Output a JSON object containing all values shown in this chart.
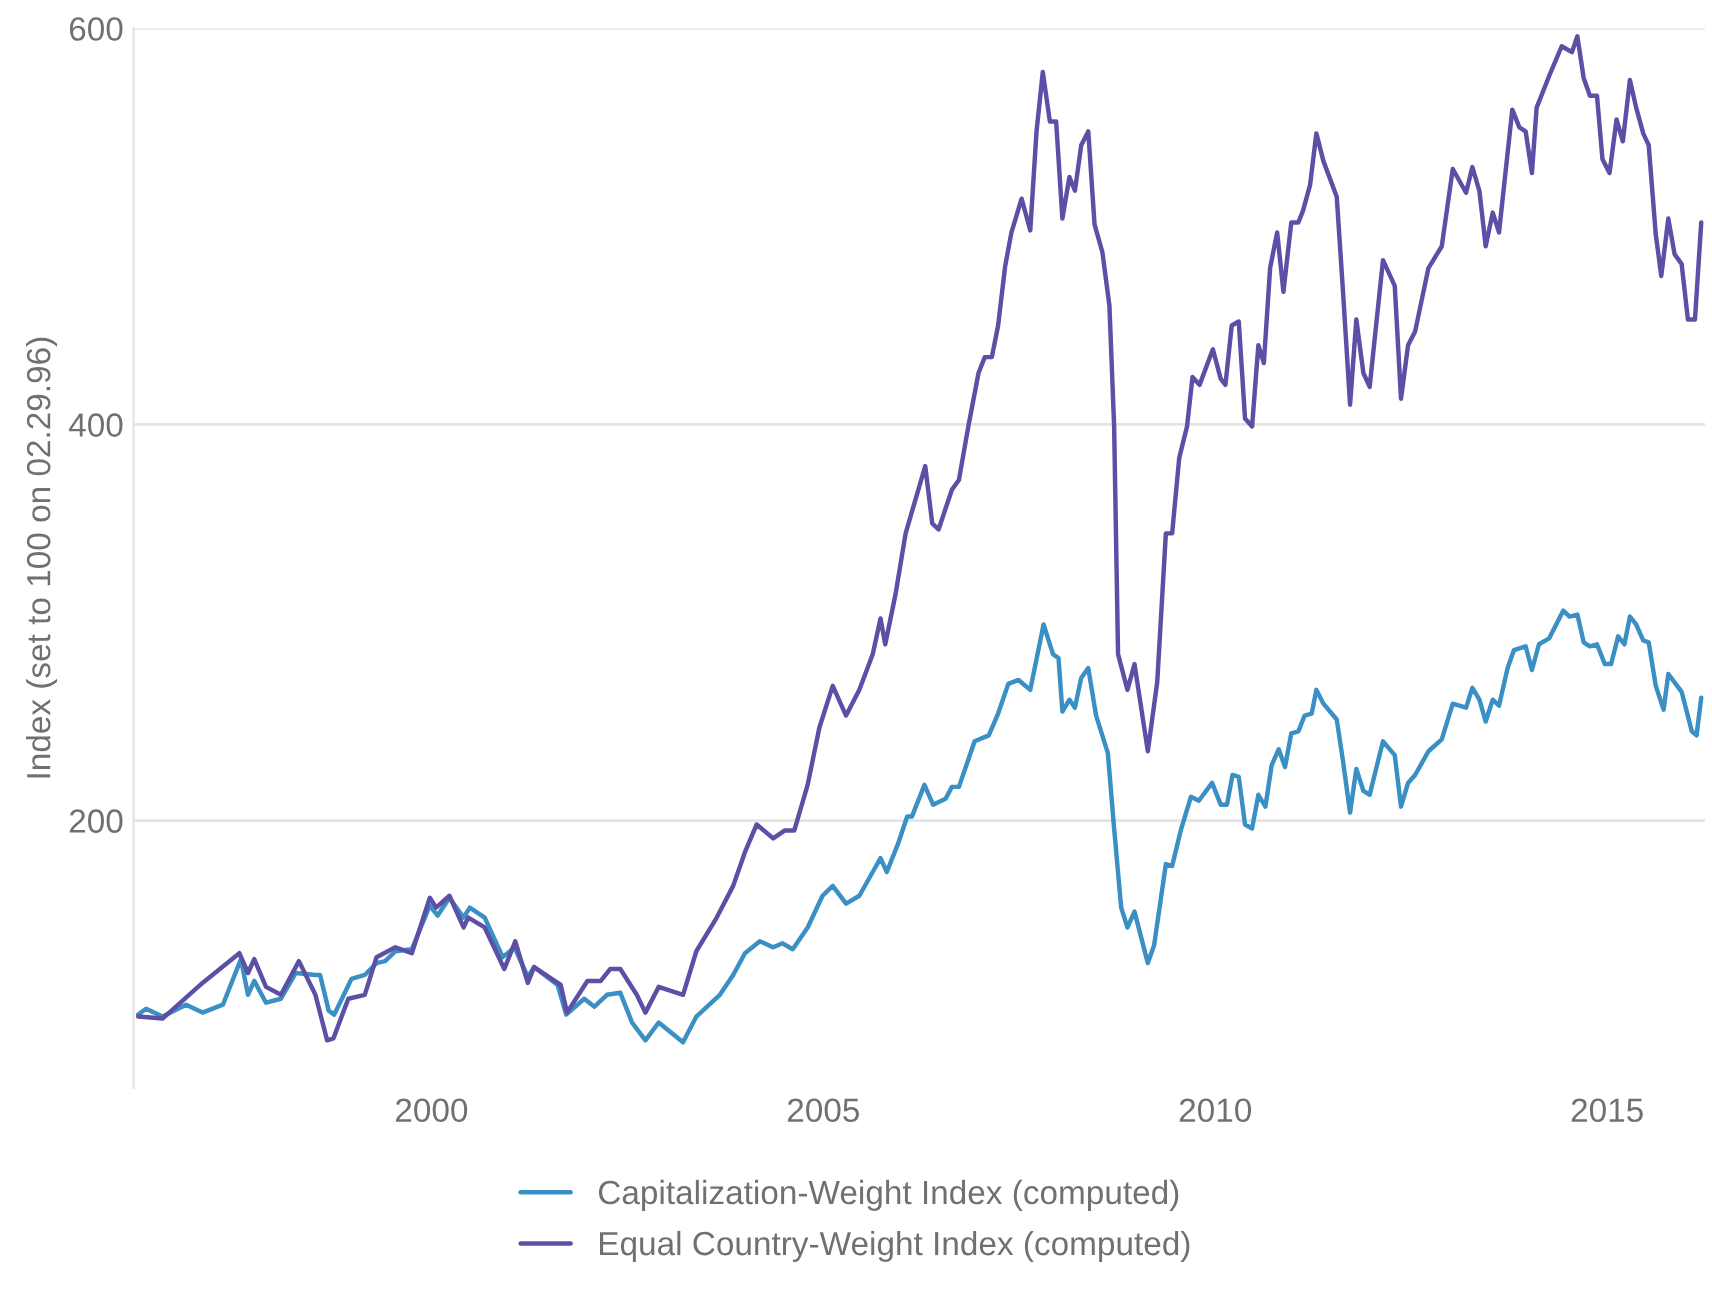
{
  "chart_data": {
    "type": "line",
    "ylabel": "Index (set to 100 on 02.29.96)",
    "xlim": [
      1996.2,
      2016.25
    ],
    "xticks": [
      2000,
      2005,
      2010,
      2015
    ],
    "ylim": [
      65,
      600
    ],
    "yticks": [
      200,
      400,
      600
    ],
    "grid": "y",
    "legend": "bottom",
    "marker": "none",
    "line_style": "solid",
    "series": [
      {
        "name": "Capitalization-Weight Index (computed)",
        "color": "#3a8fc4",
        "x": [
          1996.26,
          1996.36,
          1996.57,
          1996.87,
          1997.08,
          1997.34,
          1997.57,
          1997.66,
          1997.74,
          1997.89,
          1998.08,
          1998.27,
          1998.52,
          1998.58,
          1998.69,
          1998.76,
          1998.98,
          1999.15,
          1999.3,
          1999.41,
          1999.54,
          1999.75,
          1999.98,
          2000.08,
          2000.23,
          2000.41,
          2000.49,
          2000.68,
          2000.91,
          2001.06,
          2001.23,
          2001.31,
          2001.61,
          2001.72,
          2001.95,
          2002.08,
          2002.24,
          2002.41,
          2002.56,
          2002.73,
          2002.9,
          2003.21,
          2003.38,
          2003.68,
          2003.85,
          2004.0,
          2004.19,
          2004.36,
          2004.48,
          2004.61,
          2004.8,
          2004.99,
          2005.12,
          2005.29,
          2005.46,
          2005.63,
          2005.73,
          2005.81,
          2005.96,
          2006.07,
          2006.13,
          2006.29,
          2006.4,
          2006.56,
          2006.64,
          2006.73,
          2006.93,
          2007.11,
          2007.23,
          2007.36,
          2007.49,
          2007.64,
          2007.81,
          2007.93,
          2008.0,
          2008.05,
          2008.14,
          2008.21,
          2008.29,
          2008.38,
          2008.48,
          2008.63,
          2008.71,
          2008.8,
          2008.88,
          2008.97,
          2009.14,
          2009.22,
          2009.37,
          2009.45,
          2009.56,
          2009.69,
          2009.79,
          2009.96,
          2010.07,
          2010.15,
          2010.22,
          2010.3,
          2010.38,
          2010.47,
          2010.55,
          2010.64,
          2010.72,
          2010.81,
          2010.89,
          2010.97,
          2011.06,
          2011.14,
          2011.23,
          2011.29,
          2011.38,
          2011.55,
          2011.63,
          2011.72,
          2011.8,
          2011.89,
          2011.97,
          2012.14,
          2012.29,
          2012.37,
          2012.46,
          2012.55,
          2012.72,
          2012.89,
          2013.03,
          2013.2,
          2013.28,
          2013.37,
          2013.45,
          2013.54,
          2013.62,
          2013.73,
          2013.81,
          2013.96,
          2014.04,
          2014.13,
          2014.26,
          2014.44,
          2014.52,
          2014.62,
          2014.7,
          2014.78,
          2014.87,
          2014.97,
          2015.05,
          2015.14,
          2015.22,
          2015.29,
          2015.37,
          2015.46,
          2015.53,
          2015.62,
          2015.72,
          2015.78,
          2015.95,
          2016.08,
          2016.14,
          2016.2
        ],
        "values": [
          102,
          105,
          101,
          107,
          103,
          107,
          130,
          112,
          119,
          108,
          110,
          123,
          122,
          122,
          104,
          102,
          120,
          122,
          128,
          129,
          134,
          135,
          157,
          152,
          161,
          151,
          156,
          151,
          131,
          136,
          121,
          126,
          117,
          102,
          110,
          106,
          112,
          113,
          98,
          89,
          98,
          88,
          101,
          112,
          122,
          133,
          139,
          136,
          138,
          135,
          146,
          162,
          167,
          158,
          162,
          174,
          181,
          174,
          189,
          202,
          202,
          218,
          208,
          211,
          217,
          217,
          240,
          243,
          254,
          269,
          271,
          266,
          299,
          284,
          282,
          255,
          261,
          257,
          272,
          277,
          253,
          234,
          196,
          156,
          146,
          154,
          128,
          137,
          178,
          177,
          195,
          212,
          210,
          219,
          208,
          208,
          223,
          222,
          198,
          196,
          213,
          207,
          228,
          236,
          227,
          244,
          245,
          253,
          254,
          266,
          259,
          251,
          230,
          204,
          226,
          215,
          213,
          240,
          233,
          207,
          219,
          223,
          235,
          241,
          259,
          257,
          267,
          261,
          250,
          261,
          258,
          277,
          286,
          288,
          276,
          289,
          292,
          306,
          303,
          304,
          290,
          288,
          289,
          279,
          279,
          293,
          289,
          303,
          299,
          291,
          290,
          268,
          256,
          274,
          265,
          245,
          243,
          262
        ]
      },
      {
        "name": "Equal Country-Weight Index (computed)",
        "color": "#5b4fa6",
        "x": [
          1996.26,
          1996.57,
          1997.08,
          1997.55,
          1997.66,
          1997.74,
          1997.89,
          1998.08,
          1998.31,
          1998.52,
          1998.67,
          1998.75,
          1998.94,
          1999.15,
          1999.3,
          1999.54,
          1999.75,
          1999.98,
          2000.06,
          2000.23,
          2000.41,
          2000.47,
          2000.68,
          2000.93,
          2001.07,
          2001.23,
          2001.31,
          2001.65,
          2001.73,
          2001.99,
          2002.16,
          2002.28,
          2002.41,
          2002.62,
          2002.73,
          2002.9,
          2003.21,
          2003.38,
          2003.64,
          2003.85,
          2004.0,
          2004.15,
          2004.36,
          2004.51,
          2004.63,
          2004.8,
          2004.95,
          2005.12,
          2005.29,
          2005.46,
          2005.63,
          2005.73,
          2005.79,
          2005.92,
          2006.05,
          2006.3,
          2006.39,
          2006.47,
          2006.64,
          2006.73,
          2006.85,
          2006.98,
          2007.06,
          2007.15,
          2007.23,
          2007.32,
          2007.4,
          2007.53,
          2007.64,
          2007.72,
          2007.8,
          2007.89,
          2007.97,
          2008.05,
          2008.14,
          2008.21,
          2008.29,
          2008.38,
          2008.46,
          2008.56,
          2008.65,
          2008.71,
          2008.76,
          2008.88,
          2008.97,
          2009.14,
          2009.26,
          2009.37,
          2009.45,
          2009.54,
          2009.64,
          2009.71,
          2009.8,
          2009.97,
          2010.07,
          2010.13,
          2010.21,
          2010.3,
          2010.38,
          2010.47,
          2010.55,
          2010.62,
          2010.7,
          2010.79,
          2010.87,
          2010.97,
          2011.06,
          2011.12,
          2011.21,
          2011.29,
          2011.38,
          2011.55,
          2011.63,
          2011.72,
          2011.8,
          2011.89,
          2011.97,
          2012.14,
          2012.29,
          2012.37,
          2012.46,
          2012.55,
          2012.72,
          2012.89,
          2013.03,
          2013.2,
          2013.28,
          2013.37,
          2013.45,
          2013.54,
          2013.62,
          2013.79,
          2013.88,
          2013.96,
          2014.04,
          2014.1,
          2014.26,
          2014.42,
          2014.55,
          2014.62,
          2014.7,
          2014.78,
          2014.87,
          2014.94,
          2015.03,
          2015.12,
          2015.2,
          2015.29,
          2015.37,
          2015.46,
          2015.53,
          2015.62,
          2015.69,
          2015.78,
          2015.86,
          2015.95,
          2016.03,
          2016.12,
          2016.2
        ],
        "values": [
          101,
          100,
          118,
          133,
          123,
          130,
          116,
          112,
          129,
          112,
          89,
          90,
          110,
          112,
          131,
          136,
          133,
          161,
          156,
          162,
          146,
          151,
          146,
          125,
          139,
          118,
          126,
          117,
          103,
          119,
          119,
          125,
          125,
          112,
          103,
          116,
          112,
          134,
          151,
          167,
          184,
          198,
          191,
          195,
          195,
          218,
          247,
          268,
          253,
          266,
          284,
          302,
          289,
          314,
          345,
          379,
          350,
          347,
          367,
          372,
          399,
          426,
          434,
          434,
          450,
          480,
          497,
          514,
          498,
          548,
          578,
          553,
          553,
          504,
          525,
          518,
          541,
          548,
          501,
          487,
          460,
          399,
          284,
          266,
          279,
          235,
          270,
          345,
          345,
          383,
          399,
          424,
          420,
          438,
          423,
          420,
          450,
          452,
          403,
          399,
          440,
          431,
          479,
          497,
          467,
          502,
          502,
          508,
          521,
          547,
          533,
          515,
          467,
          410,
          453,
          426,
          419,
          483,
          470,
          413,
          440,
          447,
          479,
          490,
          529,
          517,
          530,
          518,
          490,
          507,
          497,
          559,
          550,
          548,
          527,
          560,
          576,
          591,
          588,
          596,
          575,
          566,
          566,
          534,
          527,
          554,
          543,
          574,
          560,
          547,
          541,
          496,
          475,
          504,
          486,
          481,
          453,
          453,
          502
        ]
      }
    ]
  }
}
